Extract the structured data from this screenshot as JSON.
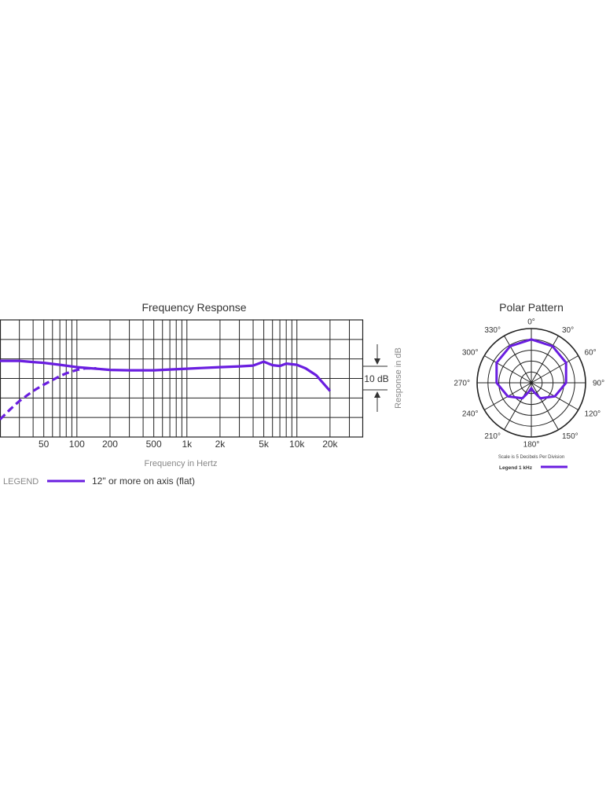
{
  "chart_data": [
    {
      "type": "line",
      "title": "Frequency Response",
      "xlabel": "Frequency in Hertz",
      "ylabel": "Response in dB",
      "x_scale": "log",
      "xlim": [
        20,
        40000
      ],
      "x_ticks": [
        50,
        100,
        200,
        500,
        1000,
        2000,
        5000,
        10000,
        20000
      ],
      "x_tick_labels": [
        "50",
        "100",
        "200",
        "500",
        "1k",
        "2k",
        "5k",
        "10k",
        "20k"
      ],
      "ylim": [
        -15,
        15
      ],
      "scale_bar_label": "10 dB",
      "grid": true,
      "legend_prefix": "LEGEND",
      "series": [
        {
          "name": "12\" or more on axis (flat)",
          "style": "solid",
          "color": "#6a1ee0",
          "x": [
            20,
            30,
            40,
            50,
            70,
            100,
            150,
            200,
            300,
            500,
            700,
            1000,
            2000,
            3000,
            4000,
            5000,
            6000,
            7000,
            8000,
            10000,
            12000,
            15000,
            20000
          ],
          "y": [
            4.5,
            4.5,
            4.2,
            4,
            3.5,
            2.9,
            2.5,
            2.2,
            2.1,
            2.1,
            2.3,
            2.5,
            2.9,
            3.1,
            3.3,
            4.3,
            3.4,
            3.2,
            3.8,
            3.5,
            2.6,
            0.8,
            -3.2
          ]
        },
        {
          "style": "dashed",
          "color": "#6a1ee0",
          "x": [
            20,
            25,
            30,
            40,
            50,
            60,
            70,
            80,
            100,
            120,
            150
          ],
          "y": [
            -10.5,
            -7.8,
            -5.8,
            -3.2,
            -1.6,
            -0.4,
            0.6,
            1.3,
            2.2,
            2.6,
            2.6
          ]
        }
      ]
    },
    {
      "type": "polar",
      "title": "Polar Pattern",
      "angle_labels": [
        "0°",
        "30°",
        "60°",
        "90°",
        "120°",
        "150°",
        "180°",
        "210°",
        "240°",
        "270°",
        "300°",
        "330°"
      ],
      "rings": 5,
      "note": "Scale is 5 Decibels Per Division",
      "legend": "Legend 1 kHz",
      "color": "#6a1ee0",
      "series": [
        {
          "name": "1 kHz",
          "angle_deg": [
            0,
            30,
            60,
            90,
            120,
            150,
            165,
            180,
            195,
            210,
            240,
            270,
            300,
            330
          ],
          "radius_fraction": [
            0.8,
            0.78,
            0.74,
            0.64,
            0.5,
            0.33,
            0.17,
            0.1,
            0.17,
            0.33,
            0.5,
            0.64,
            0.74,
            0.78
          ]
        }
      ]
    }
  ]
}
